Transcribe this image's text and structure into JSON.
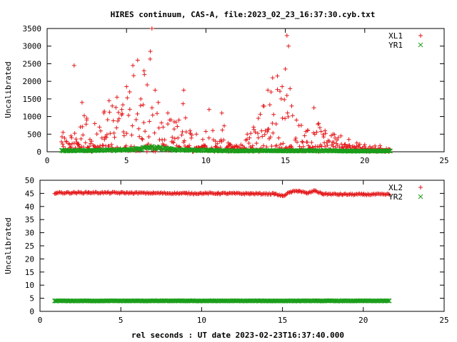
{
  "figure": {
    "title": "HIRES continuum, CAS-A, file:2023_02_23_16:37:30.cyb.txt",
    "xlabel": "rel seconds : UT date 2023-02-23T16:37:40.000"
  },
  "colors": {
    "red": "#e41a1c",
    "green": "#1a9e1a",
    "frame": "#000000",
    "background": "#ffffff"
  },
  "chart_data": [
    {
      "type": "scatter",
      "ylabel": "Uncalibrated",
      "xlim": [
        0,
        25
      ],
      "ylim": [
        0,
        3500
      ],
      "xticks": [
        "0",
        "5",
        "10",
        "15",
        "20",
        "25"
      ],
      "yticks": [
        "0",
        "500",
        "1000",
        "1500",
        "2000",
        "2500",
        "3000",
        "3500"
      ],
      "legend_position": "top-right",
      "x_range_of_data": [
        0.9,
        21.6
      ],
      "series": [
        {
          "name": "XL1",
          "marker": "+",
          "color": "#e41a1c",
          "description_points": [
            {
              "x": 1.0,
              "y": 550
            },
            {
              "x": 1.2,
              "y": 300
            },
            {
              "x": 1.5,
              "y": 450
            },
            {
              "x": 1.7,
              "y": 2450
            },
            {
              "x": 2.0,
              "y": 200
            },
            {
              "x": 2.2,
              "y": 1400
            },
            {
              "x": 2.5,
              "y": 950
            },
            {
              "x": 2.8,
              "y": 300
            },
            {
              "x": 3.0,
              "y": 800
            },
            {
              "x": 3.3,
              "y": 700
            },
            {
              "x": 3.6,
              "y": 1150
            },
            {
              "x": 3.9,
              "y": 1450
            },
            {
              "x": 4.1,
              "y": 1300
            },
            {
              "x": 4.4,
              "y": 1550
            },
            {
              "x": 4.7,
              "y": 1200
            },
            {
              "x": 5.0,
              "y": 1850
            },
            {
              "x": 5.2,
              "y": 1700
            },
            {
              "x": 5.4,
              "y": 2450
            },
            {
              "x": 5.7,
              "y": 2600
            },
            {
              "x": 5.9,
              "y": 1500
            },
            {
              "x": 6.1,
              "y": 2300
            },
            {
              "x": 6.3,
              "y": 1900
            },
            {
              "x": 6.5,
              "y": 2850
            },
            {
              "x": 6.6,
              "y": 3500
            },
            {
              "x": 6.8,
              "y": 1750
            },
            {
              "x": 7.0,
              "y": 1400
            },
            {
              "x": 7.3,
              "y": 700
            },
            {
              "x": 7.6,
              "y": 1100
            },
            {
              "x": 8.0,
              "y": 850
            },
            {
              "x": 8.3,
              "y": 900
            },
            {
              "x": 8.6,
              "y": 1750
            },
            {
              "x": 9.0,
              "y": 600
            },
            {
              "x": 9.4,
              "y": 500
            },
            {
              "x": 9.8,
              "y": 350
            },
            {
              "x": 10.2,
              "y": 1200
            },
            {
              "x": 10.6,
              "y": 300
            },
            {
              "x": 11.0,
              "y": 1100
            },
            {
              "x": 11.4,
              "y": 250
            },
            {
              "x": 11.8,
              "y": 150
            },
            {
              "x": 12.2,
              "y": 200
            },
            {
              "x": 12.6,
              "y": 500
            },
            {
              "x": 13.0,
              "y": 700
            },
            {
              "x": 13.3,
              "y": 950
            },
            {
              "x": 13.6,
              "y": 1300
            },
            {
              "x": 13.9,
              "y": 1750
            },
            {
              "x": 14.2,
              "y": 2100
            },
            {
              "x": 14.5,
              "y": 2150
            },
            {
              "x": 14.8,
              "y": 1850
            },
            {
              "x": 15.0,
              "y": 2350
            },
            {
              "x": 15.1,
              "y": 3300
            },
            {
              "x": 15.2,
              "y": 3000
            },
            {
              "x": 15.4,
              "y": 1300
            },
            {
              "x": 15.7,
              "y": 900
            },
            {
              "x": 16.0,
              "y": 750
            },
            {
              "x": 16.4,
              "y": 600
            },
            {
              "x": 16.8,
              "y": 1250
            },
            {
              "x": 17.1,
              "y": 800
            },
            {
              "x": 17.5,
              "y": 600
            },
            {
              "x": 18.0,
              "y": 500
            },
            {
              "x": 18.5,
              "y": 450
            },
            {
              "x": 19.0,
              "y": 350
            },
            {
              "x": 19.5,
              "y": 250
            },
            {
              "x": 20.0,
              "y": 200
            },
            {
              "x": 20.5,
              "y": 120
            },
            {
              "x": 21.0,
              "y": 100
            },
            {
              "x": 21.5,
              "y": 80
            }
          ]
        },
        {
          "name": "YR1",
          "marker": "x",
          "color": "#1a9e1a",
          "description_points": [
            {
              "x": 1.0,
              "y": 30
            },
            {
              "x": 3.0,
              "y": 40
            },
            {
              "x": 5.0,
              "y": 50
            },
            {
              "x": 6.5,
              "y": 120
            },
            {
              "x": 8.0,
              "y": 60
            },
            {
              "x": 10.0,
              "y": 40
            },
            {
              "x": 12.0,
              "y": 25
            },
            {
              "x": 14.0,
              "y": 30
            },
            {
              "x": 16.0,
              "y": 30
            },
            {
              "x": 18.0,
              "y": 25
            },
            {
              "x": 20.0,
              "y": 20
            },
            {
              "x": 21.6,
              "y": 20
            }
          ]
        }
      ]
    },
    {
      "type": "scatter",
      "ylabel": "Uncalibrated",
      "xlim": [
        0,
        25
      ],
      "ylim": [
        0,
        50
      ],
      "xticks": [
        "0",
        "5",
        "10",
        "15",
        "20",
        "25"
      ],
      "yticks": [
        "0",
        "5",
        "10",
        "15",
        "20",
        "25",
        "30",
        "35",
        "40",
        "45",
        "50"
      ],
      "legend_position": "top-right",
      "x_range_of_data": [
        0.9,
        21.6
      ],
      "series": [
        {
          "name": "XL2",
          "marker": "+",
          "color": "#e41a1c",
          "description_points": [
            {
              "x": 1.0,
              "y": 45.2
            },
            {
              "x": 3.0,
              "y": 45.3
            },
            {
              "x": 5.0,
              "y": 45.2
            },
            {
              "x": 7.0,
              "y": 45.1
            },
            {
              "x": 9.0,
              "y": 45.0
            },
            {
              "x": 11.0,
              "y": 45.0
            },
            {
              "x": 13.0,
              "y": 44.9
            },
            {
              "x": 14.5,
              "y": 44.8
            },
            {
              "x": 15.0,
              "y": 44.0
            },
            {
              "x": 15.5,
              "y": 45.5
            },
            {
              "x": 16.0,
              "y": 46.0
            },
            {
              "x": 16.5,
              "y": 45.0
            },
            {
              "x": 17.0,
              "y": 46.0
            },
            {
              "x": 17.5,
              "y": 44.8
            },
            {
              "x": 18.5,
              "y": 44.6
            },
            {
              "x": 20.0,
              "y": 44.6
            },
            {
              "x": 21.6,
              "y": 44.6
            }
          ]
        },
        {
          "name": "YR2",
          "marker": "x",
          "color": "#1a9e1a",
          "description_points": [
            {
              "x": 1.0,
              "y": 4.0
            },
            {
              "x": 21.6,
              "y": 4.0
            }
          ]
        }
      ]
    }
  ]
}
